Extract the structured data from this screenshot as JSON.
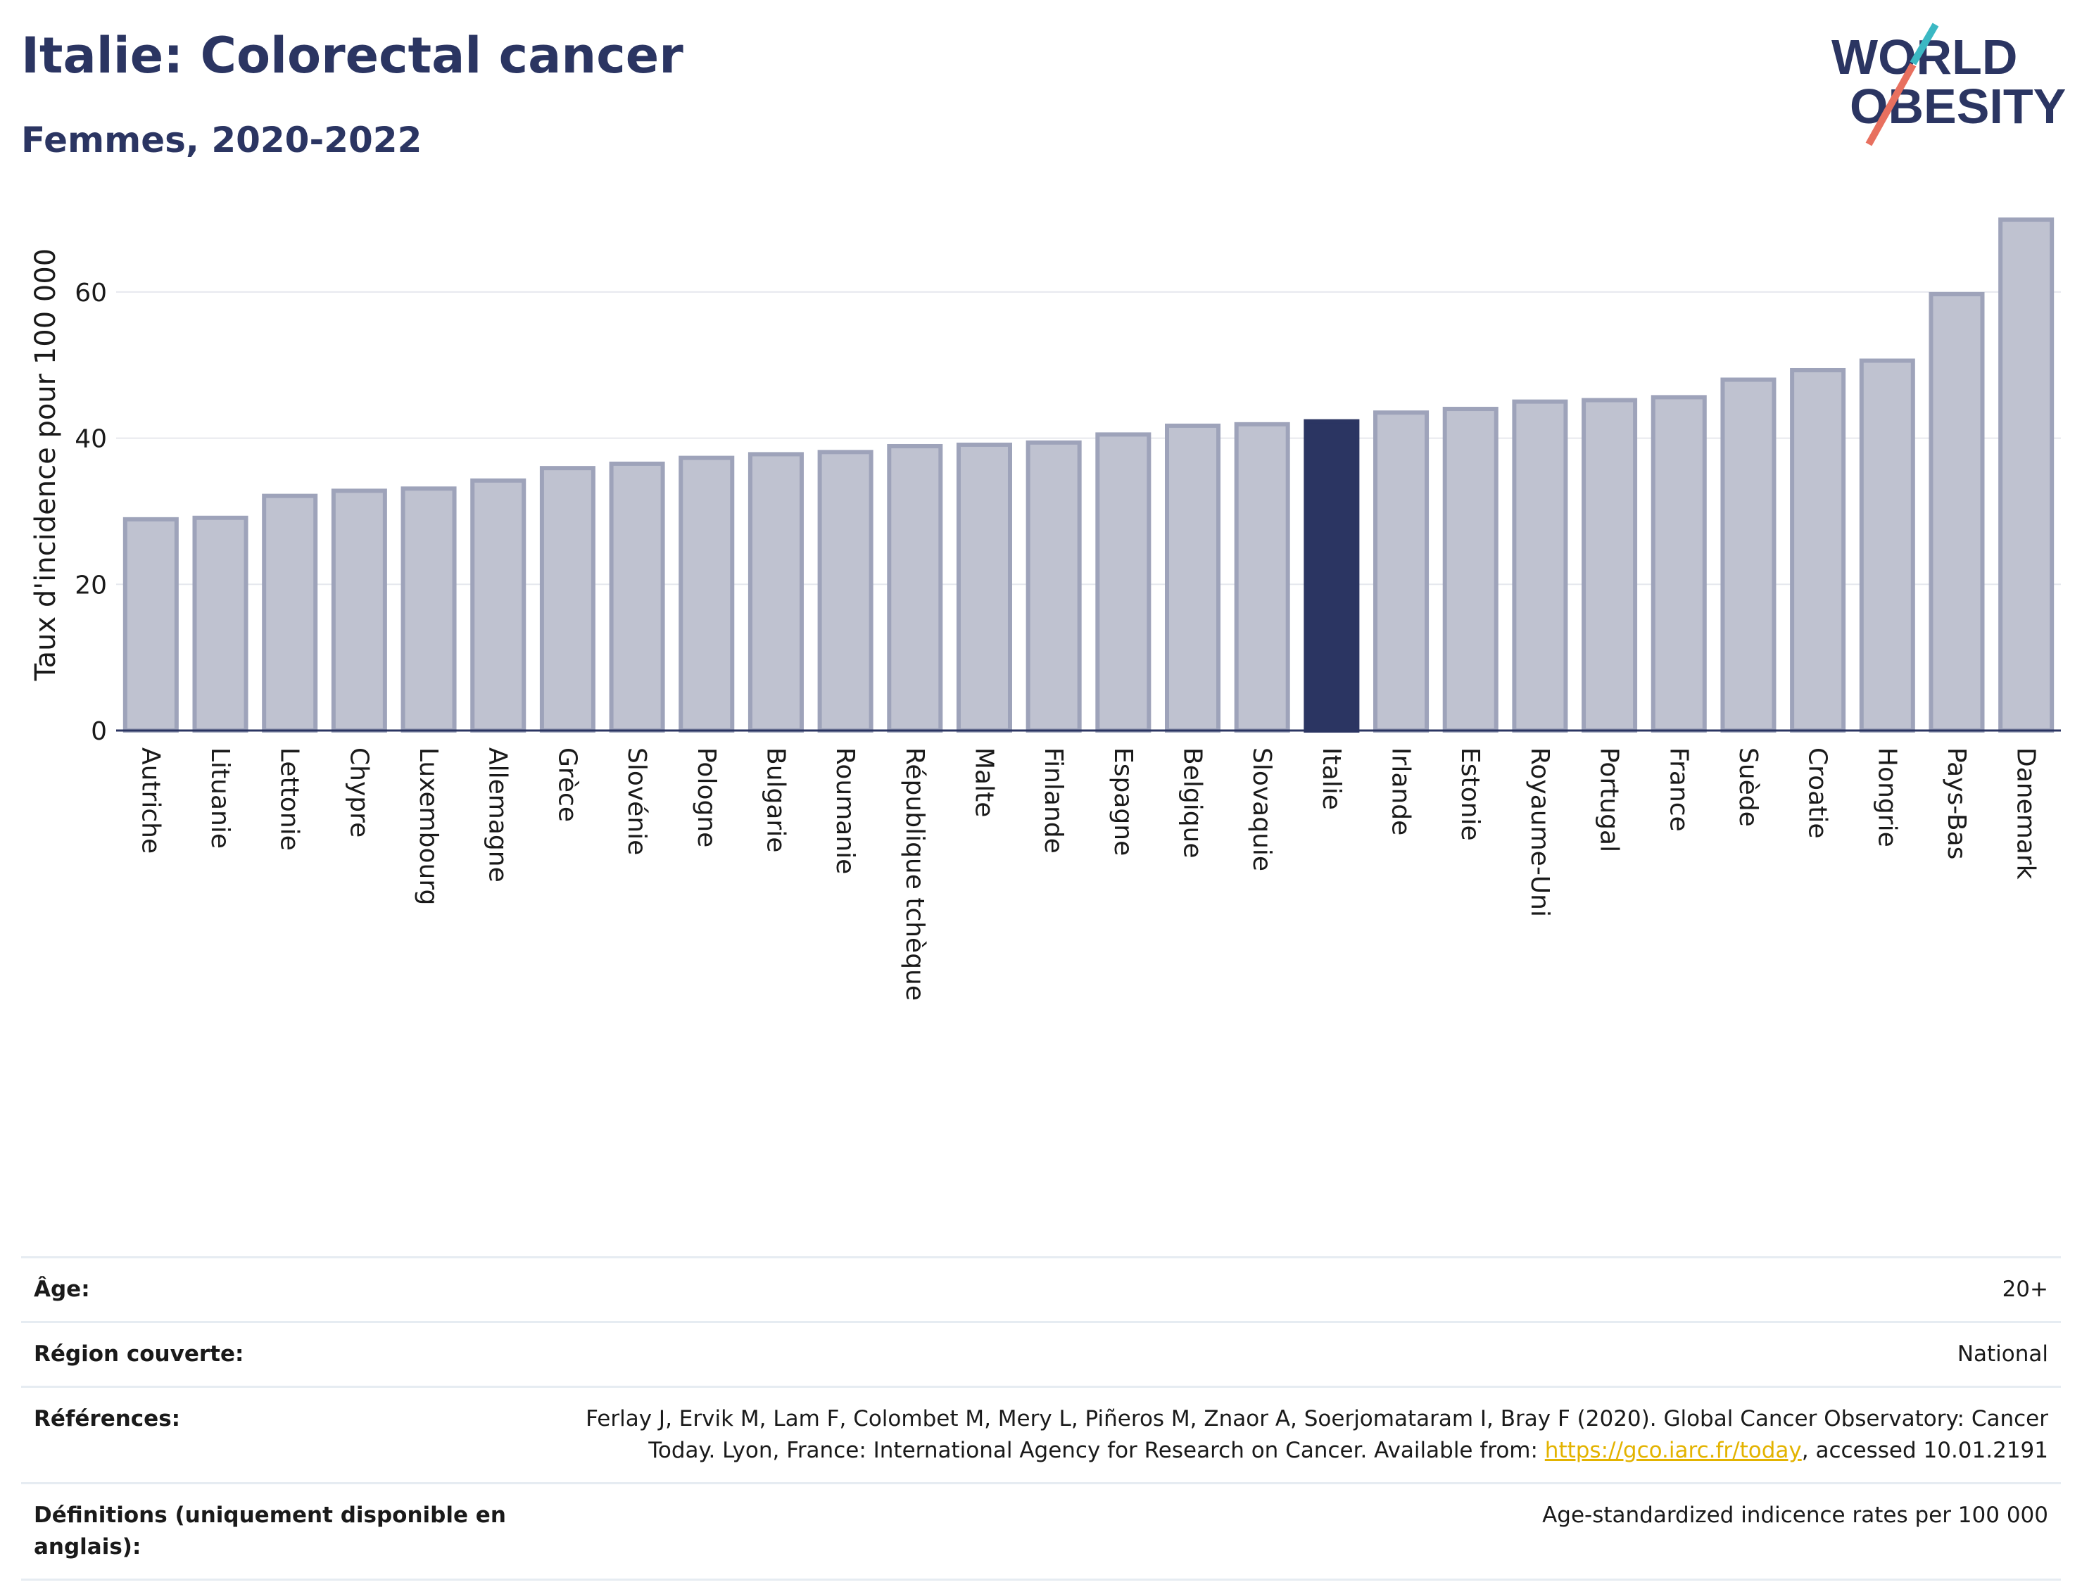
{
  "header": {
    "title": "Italie: Colorectal cancer",
    "subtitle": "Femmes, 2020-2022"
  },
  "logo": {
    "line1": "WORLD",
    "line2": "OBESITY",
    "slash_colors": [
      "#3bb8c3",
      "#e8705f"
    ],
    "text_color": "#2b3562"
  },
  "chart_data": {
    "type": "bar",
    "ylabel": "Taux d'incidence pour 100 000",
    "ylim": [
      0,
      70
    ],
    "yticks": [
      0,
      20,
      40,
      60
    ],
    "grid": true,
    "highlight": "Italie",
    "colors": {
      "bar": "#bfc2d0",
      "bar_border": "#9ea3ba",
      "highlight": "#2b3562",
      "grid": "#e6e8ee"
    },
    "categories": [
      "Autriche",
      "Lituanie",
      "Lettonie",
      "Chypre",
      "Luxembourg",
      "Allemagne",
      "Grèce",
      "Slovénie",
      "Pologne",
      "Bulgarie",
      "Roumanie",
      "République tchèque",
      "Malte",
      "Finlande",
      "Espagne",
      "Belgique",
      "Slovaquie",
      "Italie",
      "Irlande",
      "Estonie",
      "Royaume-Uni",
      "Portugal",
      "France",
      "Suède",
      "Croatie",
      "Hongrie",
      "Pays-Bas",
      "Danemark"
    ],
    "values": [
      28.9,
      29.1,
      32.1,
      32.8,
      33.1,
      34.2,
      35.9,
      36.5,
      37.3,
      37.8,
      38.1,
      38.9,
      39.1,
      39.4,
      40.5,
      41.7,
      41.9,
      42.3,
      43.5,
      44.0,
      45.0,
      45.2,
      45.6,
      48.0,
      49.3,
      50.6,
      59.7,
      69.9
    ]
  },
  "info": {
    "age_label": "Âge:",
    "age_value": "20+",
    "region_label": "Région couverte:",
    "region_value": "National",
    "refs_label": "Références:",
    "refs_text_1": "Ferlay J, Ervik M, Lam F, Colombet M, Mery L, Piñeros M, Znaor A, Soerjomataram I, Bray F (2020). Global Cancer Observatory: Cancer Today. Lyon, France: International Agency for Research on Cancer. Available from: ",
    "refs_link": "https://gco.iarc.fr/today",
    "refs_text_2": ", accessed 10.01.2191",
    "defs_label": "Définitions (uniquement disponible en anglais):",
    "defs_value": "Age-standardized indicence rates per 100 000"
  }
}
